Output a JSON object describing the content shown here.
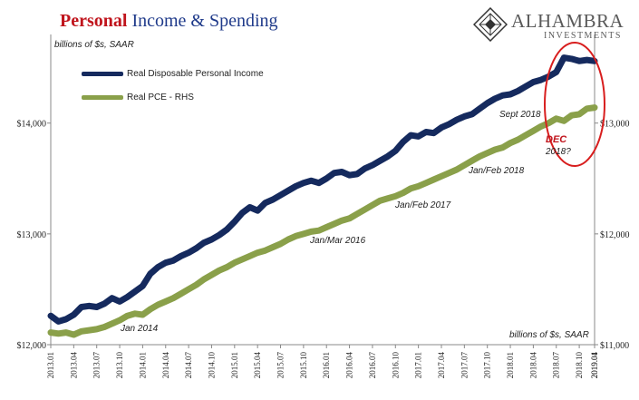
{
  "title": {
    "highlight": "Personal",
    "rest": "Income & Spending"
  },
  "brand": {
    "name": "ALHAMBRA",
    "sub": "INVESTMENTS",
    "logo_icon": "diamond-lattice-icon"
  },
  "units": {
    "top": "billions of $s, SAAR",
    "bottom": "billions of $s, SAAR"
  },
  "annotations": {
    "jan2014": "Jan 2014",
    "janmar2016": "Jan/Mar 2016",
    "janfeb2017": "Jan/Feb 2017",
    "janfeb2018": "Jan/Feb 2018",
    "sept2018": "Sept 2018",
    "dec": "DEC",
    "dec_q": "2018?"
  },
  "colors": {
    "income": "#152a5e",
    "pce": "#8aa04a",
    "highlight": "#c0141c",
    "title_blue": "#1f3a8a"
  },
  "chart_data": {
    "type": "line",
    "x_ticks": [
      "2013.01",
      "2013.04",
      "2013.07",
      "2013.10",
      "2014.01",
      "2014.04",
      "2014.07",
      "2014.10",
      "2015.01",
      "2015.04",
      "2015.07",
      "2015.10",
      "2016.01",
      "2016.04",
      "2016.07",
      "2016.10",
      "2017.01",
      "2017.04",
      "2017.07",
      "2017.10",
      "2018.01",
      "2018.04",
      "2018.07",
      "2018.10",
      "2019.01",
      "2019.04"
    ],
    "y_left_ticks": [
      "$12,000",
      "$13,000",
      "$14,000"
    ],
    "y_right_ticks": [
      "$11,000",
      "$12,000",
      "$13,000"
    ],
    "ylim_left": [
      12000,
      14800
    ],
    "ylim_right": [
      11000,
      13800
    ],
    "grid": false,
    "legend_placement": "top-left",
    "series": [
      {
        "name": "Real Disposable Personal Income",
        "axis": "left",
        "values": [
          12260,
          12210,
          12230,
          12270,
          12340,
          12350,
          12340,
          12370,
          12420,
          12390,
          12430,
          12480,
          12530,
          12640,
          12700,
          12740,
          12760,
          12800,
          12830,
          12870,
          12920,
          12950,
          12990,
          13040,
          13110,
          13190,
          13240,
          13210,
          13280,
          13310,
          13350,
          13390,
          13430,
          13460,
          13480,
          13460,
          13500,
          13550,
          13560,
          13530,
          13540,
          13590,
          13620,
          13660,
          13700,
          13750,
          13830,
          13890,
          13880,
          13920,
          13910,
          13960,
          13990,
          14030,
          14060,
          14080,
          14130,
          14180,
          14220,
          14250,
          14260,
          14290,
          14330,
          14370,
          14390,
          14420,
          14460,
          14590,
          14580,
          14560,
          14570,
          14560
        ]
      },
      {
        "name": "Real PCE - RHS",
        "axis": "right",
        "values": [
          11110,
          11100,
          11110,
          11090,
          11120,
          11130,
          11140,
          11160,
          11190,
          11220,
          11260,
          11280,
          11270,
          11320,
          11360,
          11390,
          11420,
          11460,
          11500,
          11540,
          11590,
          11630,
          11670,
          11700,
          11740,
          11770,
          11800,
          11830,
          11850,
          11880,
          11910,
          11950,
          11980,
          12000,
          12020,
          12030,
          12060,
          12090,
          12120,
          12140,
          12180,
          12220,
          12260,
          12300,
          12320,
          12340,
          12370,
          12410,
          12430,
          12460,
          12490,
          12520,
          12550,
          12580,
          12620,
          12660,
          12700,
          12730,
          12760,
          12780,
          12820,
          12850,
          12890,
          12930,
          12970,
          13000,
          13040,
          13020,
          13070,
          13080,
          13130,
          13140
        ]
      }
    ]
  }
}
